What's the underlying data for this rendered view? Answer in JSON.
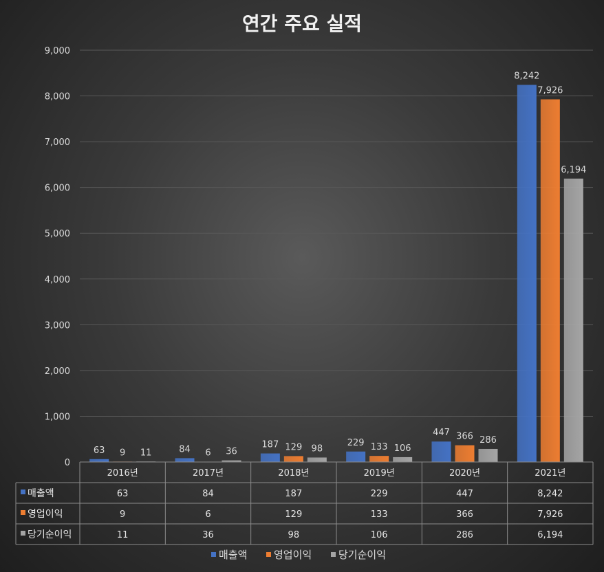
{
  "chart_data": {
    "type": "bar",
    "title": "연간 주요 실적",
    "categories": [
      "2016년",
      "2017년",
      "2018년",
      "2019년",
      "2020년",
      "2021년"
    ],
    "series": [
      {
        "name": "매출액",
        "color": "#4472c4",
        "values": [
          63,
          84,
          187,
          229,
          447,
          8242
        ],
        "labels": [
          "63",
          "84",
          "187",
          "229",
          "447",
          "8,242"
        ]
      },
      {
        "name": "영업이익",
        "color": "#ed7d31",
        "values": [
          9,
          6,
          129,
          133,
          366,
          7926
        ],
        "labels": [
          "9",
          "6",
          "129",
          "133",
          "366",
          "7,926"
        ]
      },
      {
        "name": "당기순이익",
        "color": "#a5a5a5",
        "values": [
          11,
          36,
          98,
          106,
          286,
          6194
        ],
        "labels": [
          "11",
          "36",
          "98",
          "106",
          "286",
          "6,194"
        ]
      }
    ],
    "ylim": [
      0,
      9000
    ],
    "yticks": [
      "0",
      "1,000",
      "2,000",
      "3,000",
      "4,000",
      "5,000",
      "6,000",
      "7,000",
      "8,000",
      "9,000"
    ],
    "data_table": true,
    "legend_position": "bottom"
  }
}
